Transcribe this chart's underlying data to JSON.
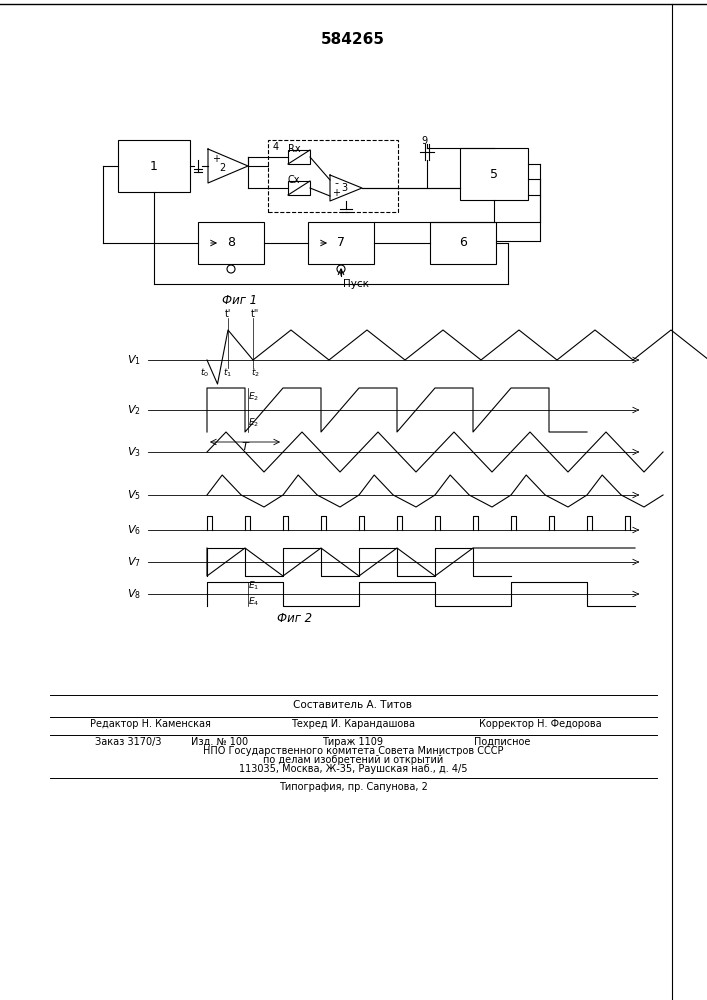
{
  "title": "584265",
  "fig1_caption": "Фиг 1",
  "fig2_caption": "Фиг 2",
  "background_color": "#ffffff",
  "line_color": "#000000",
  "footer_lines": [
    "Составитель А. Титов",
    "Редактор Н. Каменская",
    "Техред И. Карандашова",
    "Корректор Н. Федорова",
    "Заказ 3170/3",
    "Изд. № 100",
    "Тираж 1109",
    "Подписное",
    "НПО Государственного комитета Совета Министров СССР",
    "по делам изобретений и открытий",
    "113035, Москва, Ж-35, Раушская наб., д. 4/5",
    "Типография, пр. Сапунова, 2"
  ]
}
